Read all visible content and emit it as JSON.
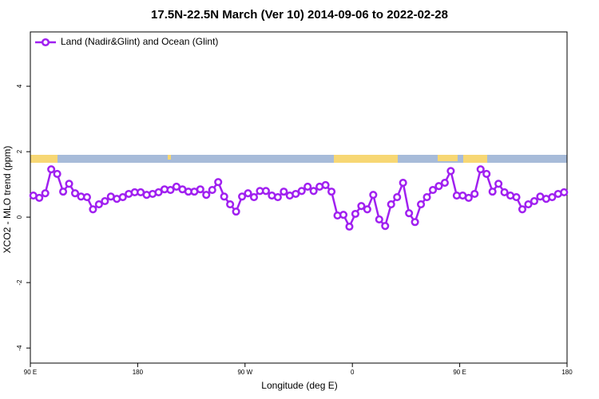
{
  "chart_data": {
    "type": "line",
    "title": "17.5N-22.5N March (Ver 10)   2014-09-06 to 2022-02-28",
    "x_label": "Longitude (deg E)",
    "y_label": "XCO2 - MLO trend (ppm)",
    "xlim": [
      90,
      540
    ],
    "ylim": [
      -4.46,
      5.66
    ],
    "xticks": [
      {
        "value": 90,
        "label": "90 E"
      },
      180,
      {
        "value": 270,
        "label": "90 W"
      },
      {
        "value": 360,
        "label": "0"
      },
      {
        "value": 450,
        "label": "90 E"
      },
      {
        "value": 540,
        "label": "180"
      }
    ],
    "yticks": [
      -4,
      -2,
      0,
      2,
      4
    ],
    "legend": "top-left",
    "x": [
      92.5,
      97.5,
      102.5,
      107.5,
      112.5,
      117.5,
      122.5,
      127.5,
      132.5,
      137.5,
      142.5,
      147.5,
      152.5,
      157.5,
      162.5,
      167.5,
      172.5,
      177.5,
      182.5,
      187.5,
      192.5,
      197.5,
      202.5,
      207.5,
      212.5,
      217.5,
      222.5,
      227.5,
      232.5,
      237.5,
      242.5,
      247.5,
      252.5,
      257.5,
      262.5,
      267.5,
      272.5,
      277.5,
      282.5,
      287.5,
      292.5,
      297.5,
      302.5,
      307.5,
      312.5,
      317.5,
      322.5,
      327.5,
      332.5,
      337.5,
      342.5,
      347.5,
      352.5,
      357.5,
      362.5,
      367.5,
      372.5,
      377.5,
      382.5,
      387.5,
      392.5,
      397.5,
      402.5,
      407.5,
      412.5,
      417.5,
      422.5,
      427.5,
      432.5,
      437.5,
      442.5,
      447.5,
      452.5,
      457.5,
      462.5,
      467.5,
      472.5,
      477.5,
      482.5,
      487.5,
      492.5,
      497.5,
      502.5,
      507.5,
      512.5,
      517.5,
      522.5,
      527.5,
      532.5,
      537.5
    ],
    "series": [
      {
        "name": "Land (Nadir&Glint) and Ocean (Glint)",
        "color": "#a020f0",
        "values": [
          0.66,
          0.59,
          0.73,
          1.46,
          1.32,
          0.78,
          1.02,
          0.73,
          0.63,
          0.61,
          0.24,
          0.39,
          0.49,
          0.63,
          0.56,
          0.61,
          0.71,
          0.76,
          0.76,
          0.68,
          0.71,
          0.76,
          0.85,
          0.83,
          0.93,
          0.85,
          0.78,
          0.78,
          0.85,
          0.68,
          0.83,
          1.07,
          0.63,
          0.39,
          0.17,
          0.63,
          0.73,
          0.61,
          0.8,
          0.8,
          0.66,
          0.61,
          0.78,
          0.66,
          0.71,
          0.8,
          0.93,
          0.8,
          0.93,
          0.98,
          0.78,
          0.05,
          0.07,
          -0.29,
          0.1,
          0.34,
          0.24,
          0.68,
          -0.07,
          -0.27,
          0.39,
          0.61,
          1.05,
          0.12,
          -0.15,
          0.39,
          0.61,
          0.83,
          0.95,
          1.05,
          1.41,
          0.66,
          0.66,
          0.59,
          0.71,
          1.46,
          1.32,
          0.78,
          1.02,
          0.76,
          0.66,
          0.61,
          0.24,
          0.39,
          0.49,
          0.63,
          0.56,
          0.61,
          0.71,
          0.76
        ]
      }
    ]
  }
}
